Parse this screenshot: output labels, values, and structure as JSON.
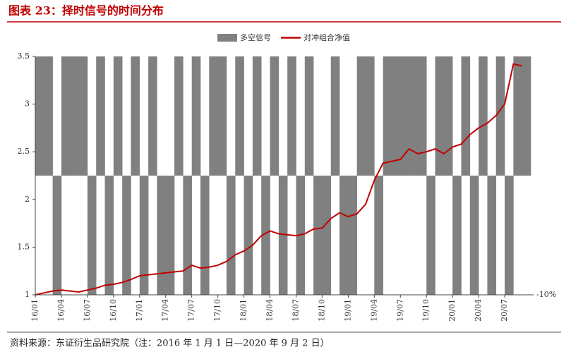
{
  "header": {
    "title": "图表 23：择时信号的时间分布"
  },
  "chart_data": {
    "type": "bar",
    "x": [
      "16/01",
      "16/02",
      "16/03",
      "16/04",
      "16/05",
      "16/06",
      "16/07",
      "16/08",
      "16/09",
      "16/10",
      "16/11",
      "16/12",
      "17/01",
      "17/02",
      "17/03",
      "17/04",
      "17/05",
      "17/06",
      "17/07",
      "17/08",
      "17/09",
      "17/10",
      "17/11",
      "17/12",
      "18/01",
      "18/02",
      "18/03",
      "18/04",
      "18/05",
      "18/06",
      "18/07",
      "18/08",
      "18/09",
      "18/10",
      "18/11",
      "18/12",
      "19/01",
      "19/02",
      "19/03",
      "19/04",
      "19/05",
      "19/06",
      "19/07",
      "19/08",
      "19/09",
      "19/10",
      "19/11",
      "19/12",
      "20/01",
      "20/02",
      "20/03",
      "20/04",
      "20/05",
      "20/06",
      "20/07",
      "20/08",
      "20/09"
    ],
    "xticks": [
      "16/01",
      "16/04",
      "16/07",
      "16/10",
      "17/01",
      "17/04",
      "17/07",
      "17/10",
      "18/01",
      "18/04",
      "18/07",
      "18/10",
      "19/01",
      "19/04",
      "19/07",
      "19/10",
      "20/01",
      "20/04",
      "20/07"
    ],
    "ylim": [
      1,
      3.5
    ],
    "yticks": [
      1,
      1.5,
      2,
      2.5,
      3,
      3.5
    ],
    "y2lim": [
      -10,
      10
    ],
    "y2ticks": [
      {
        "value": -10,
        "label": "-10%"
      }
    ],
    "legend": "top",
    "series": [
      {
        "name": "多空信号",
        "type": "bar",
        "axis": "y2",
        "color": "#808080",
        "values": [
          10,
          10,
          -10,
          10,
          10,
          10,
          -10,
          10,
          -10,
          10,
          -10,
          10,
          -10,
          10,
          -10,
          -10,
          10,
          -10,
          10,
          -10,
          10,
          10,
          -10,
          10,
          -10,
          10,
          -10,
          10,
          -10,
          10,
          -10,
          10,
          -10,
          -10,
          10,
          -10,
          -10,
          10,
          10,
          -10,
          10,
          10,
          10,
          10,
          10,
          -10,
          10,
          10,
          -10,
          10,
          -10,
          10,
          -10,
          10,
          -10,
          10,
          10
        ]
      },
      {
        "name": "对冲组合净值",
        "type": "line",
        "color": "#c00000",
        "values": [
          1.0,
          1.02,
          1.04,
          1.05,
          1.04,
          1.03,
          1.05,
          1.07,
          1.1,
          1.11,
          1.13,
          1.16,
          1.2,
          1.21,
          1.22,
          1.23,
          1.24,
          1.25,
          1.31,
          1.28,
          1.29,
          1.31,
          1.35,
          1.42,
          1.46,
          1.52,
          1.62,
          1.67,
          1.64,
          1.63,
          1.62,
          1.64,
          1.69,
          1.7,
          1.8,
          1.86,
          1.82,
          1.85,
          1.95,
          2.2,
          2.38,
          2.4,
          2.42,
          2.53,
          2.48,
          2.5,
          2.53,
          2.48,
          2.55,
          2.58,
          2.68,
          2.75,
          2.8,
          2.88,
          3.0,
          3.42,
          3.4
        ]
      }
    ]
  },
  "footer": {
    "source": "资料来源：东证衍生品研究院（注：2016 年 1 月 1 日—2020 年 9 月 2 日）"
  }
}
